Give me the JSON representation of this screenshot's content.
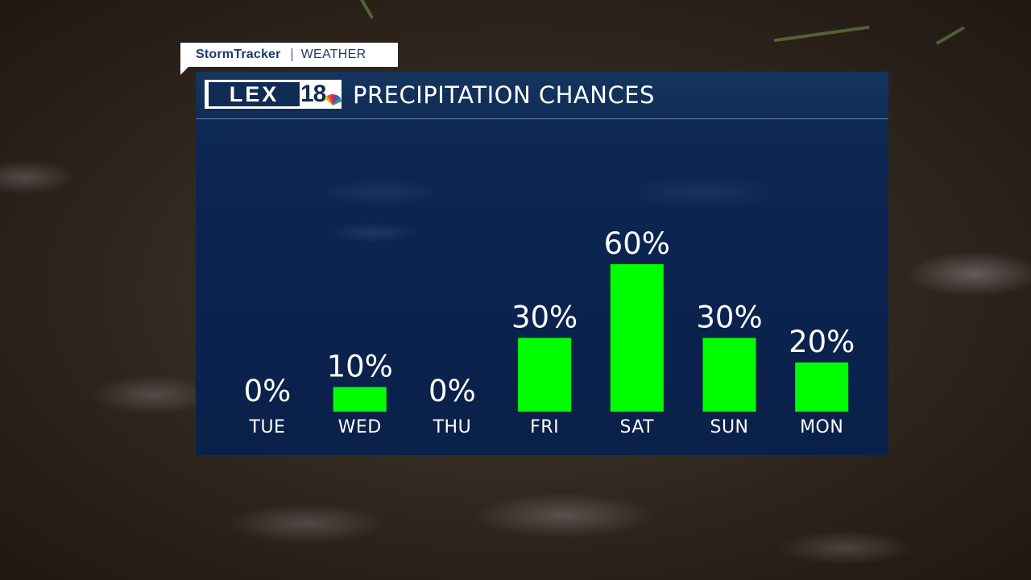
{
  "tag": {
    "brand": "StormTracker",
    "section": "WEATHER"
  },
  "logo": {
    "text": "LEX",
    "number": "18"
  },
  "colors": {
    "bar": "#00ff00",
    "panel": "#0b2450",
    "header": "#13335d"
  },
  "chart_data": {
    "type": "bar",
    "title": "PRECIPITATION CHANCES",
    "categories": [
      "TUE",
      "WED",
      "THU",
      "FRI",
      "SAT",
      "SUN",
      "MON"
    ],
    "values": [
      0,
      10,
      0,
      30,
      60,
      30,
      20
    ],
    "value_labels": [
      "0%",
      "10%",
      "0%",
      "30%",
      "60%",
      "30%",
      "20%"
    ],
    "ylim": [
      0,
      100
    ],
    "grid": false,
    "legend": "none"
  }
}
